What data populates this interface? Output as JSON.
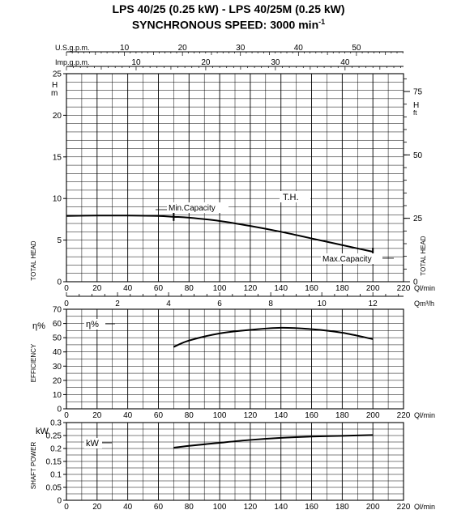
{
  "header": {
    "title_line1": "LPS 40/25 (0.25 kW) - LPS 40/25M (0.25 kW)",
    "title_line2": "SYNCHRONOUS SPEED: 3000 min",
    "title_line2_sup": "-1"
  },
  "chart_data": [
    {
      "type": "line",
      "name": "head",
      "top_scales": [
        {
          "label": "U.S.g.p.m.",
          "ticks": [
            10,
            20,
            30,
            40,
            50
          ]
        },
        {
          "label": "Imp.g.p.m.",
          "ticks": [
            10,
            20,
            30,
            40
          ]
        }
      ],
      "xlabel": "Ql/min",
      "xticks": [
        0,
        20,
        40,
        60,
        80,
        100,
        120,
        140,
        160,
        180,
        200,
        220
      ],
      "xlim": [
        0,
        220
      ],
      "x2label": "Qm³/h",
      "x2ticks": [
        0,
        2,
        4,
        6,
        8,
        10,
        12
      ],
      "ylabel": "TOTAL HEAD",
      "yunit": "H m",
      "ylim": [
        0,
        25
      ],
      "yticks": [
        0,
        5,
        10,
        15,
        20,
        25
      ],
      "ylabel_right": "TOTAL HEAD",
      "yunit_right": "H ft",
      "yticks_right": [
        0,
        25,
        50,
        75
      ],
      "grid": true,
      "series": [
        {
          "name": "T.H.",
          "x": [
            0,
            20,
            40,
            60,
            70,
            80,
            100,
            120,
            140,
            160,
            180,
            200
          ],
          "y": [
            7.9,
            7.95,
            7.95,
            7.9,
            7.8,
            7.7,
            7.3,
            6.7,
            6.0,
            5.2,
            4.4,
            3.6
          ]
        }
      ],
      "annotations": [
        {
          "text": "Min.Capacity",
          "x": 70,
          "y": 7.8
        },
        {
          "text": "Max.Capacity",
          "x": 200,
          "y": 3.6
        }
      ]
    },
    {
      "type": "line",
      "name": "efficiency",
      "xlabel": "Ql/min",
      "xticks": [
        0,
        20,
        40,
        60,
        80,
        100,
        120,
        140,
        160,
        180,
        200,
        220
      ],
      "xlim": [
        0,
        220
      ],
      "ylabel": "EFFICIENCY",
      "yunit": "η%",
      "ylim": [
        0,
        70
      ],
      "yticks": [
        0,
        10,
        20,
        30,
        40,
        50,
        60,
        70
      ],
      "grid": true,
      "series": [
        {
          "name": "η%",
          "x": [
            70,
            80,
            100,
            120,
            140,
            160,
            180,
            200
          ],
          "y": [
            43.5,
            48,
            53,
            55.5,
            57,
            56,
            53.5,
            49
          ]
        }
      ]
    },
    {
      "type": "line",
      "name": "power",
      "xlabel": "Ql/min",
      "xticks": [
        0,
        20,
        40,
        60,
        80,
        100,
        120,
        140,
        160,
        180,
        200,
        220
      ],
      "xlim": [
        0,
        220
      ],
      "ylabel": "SHAFT POWER",
      "yunit": "kW",
      "ylim": [
        0,
        0.3
      ],
      "yticks": [
        0,
        0.05,
        0.1,
        0.15,
        0.2,
        0.25,
        0.3
      ],
      "grid": true,
      "series": [
        {
          "name": "kW",
          "x": [
            70,
            80,
            100,
            120,
            140,
            160,
            180,
            200
          ],
          "y": [
            0.203,
            0.21,
            0.222,
            0.233,
            0.241,
            0.246,
            0.249,
            0.252
          ]
        }
      ]
    }
  ]
}
